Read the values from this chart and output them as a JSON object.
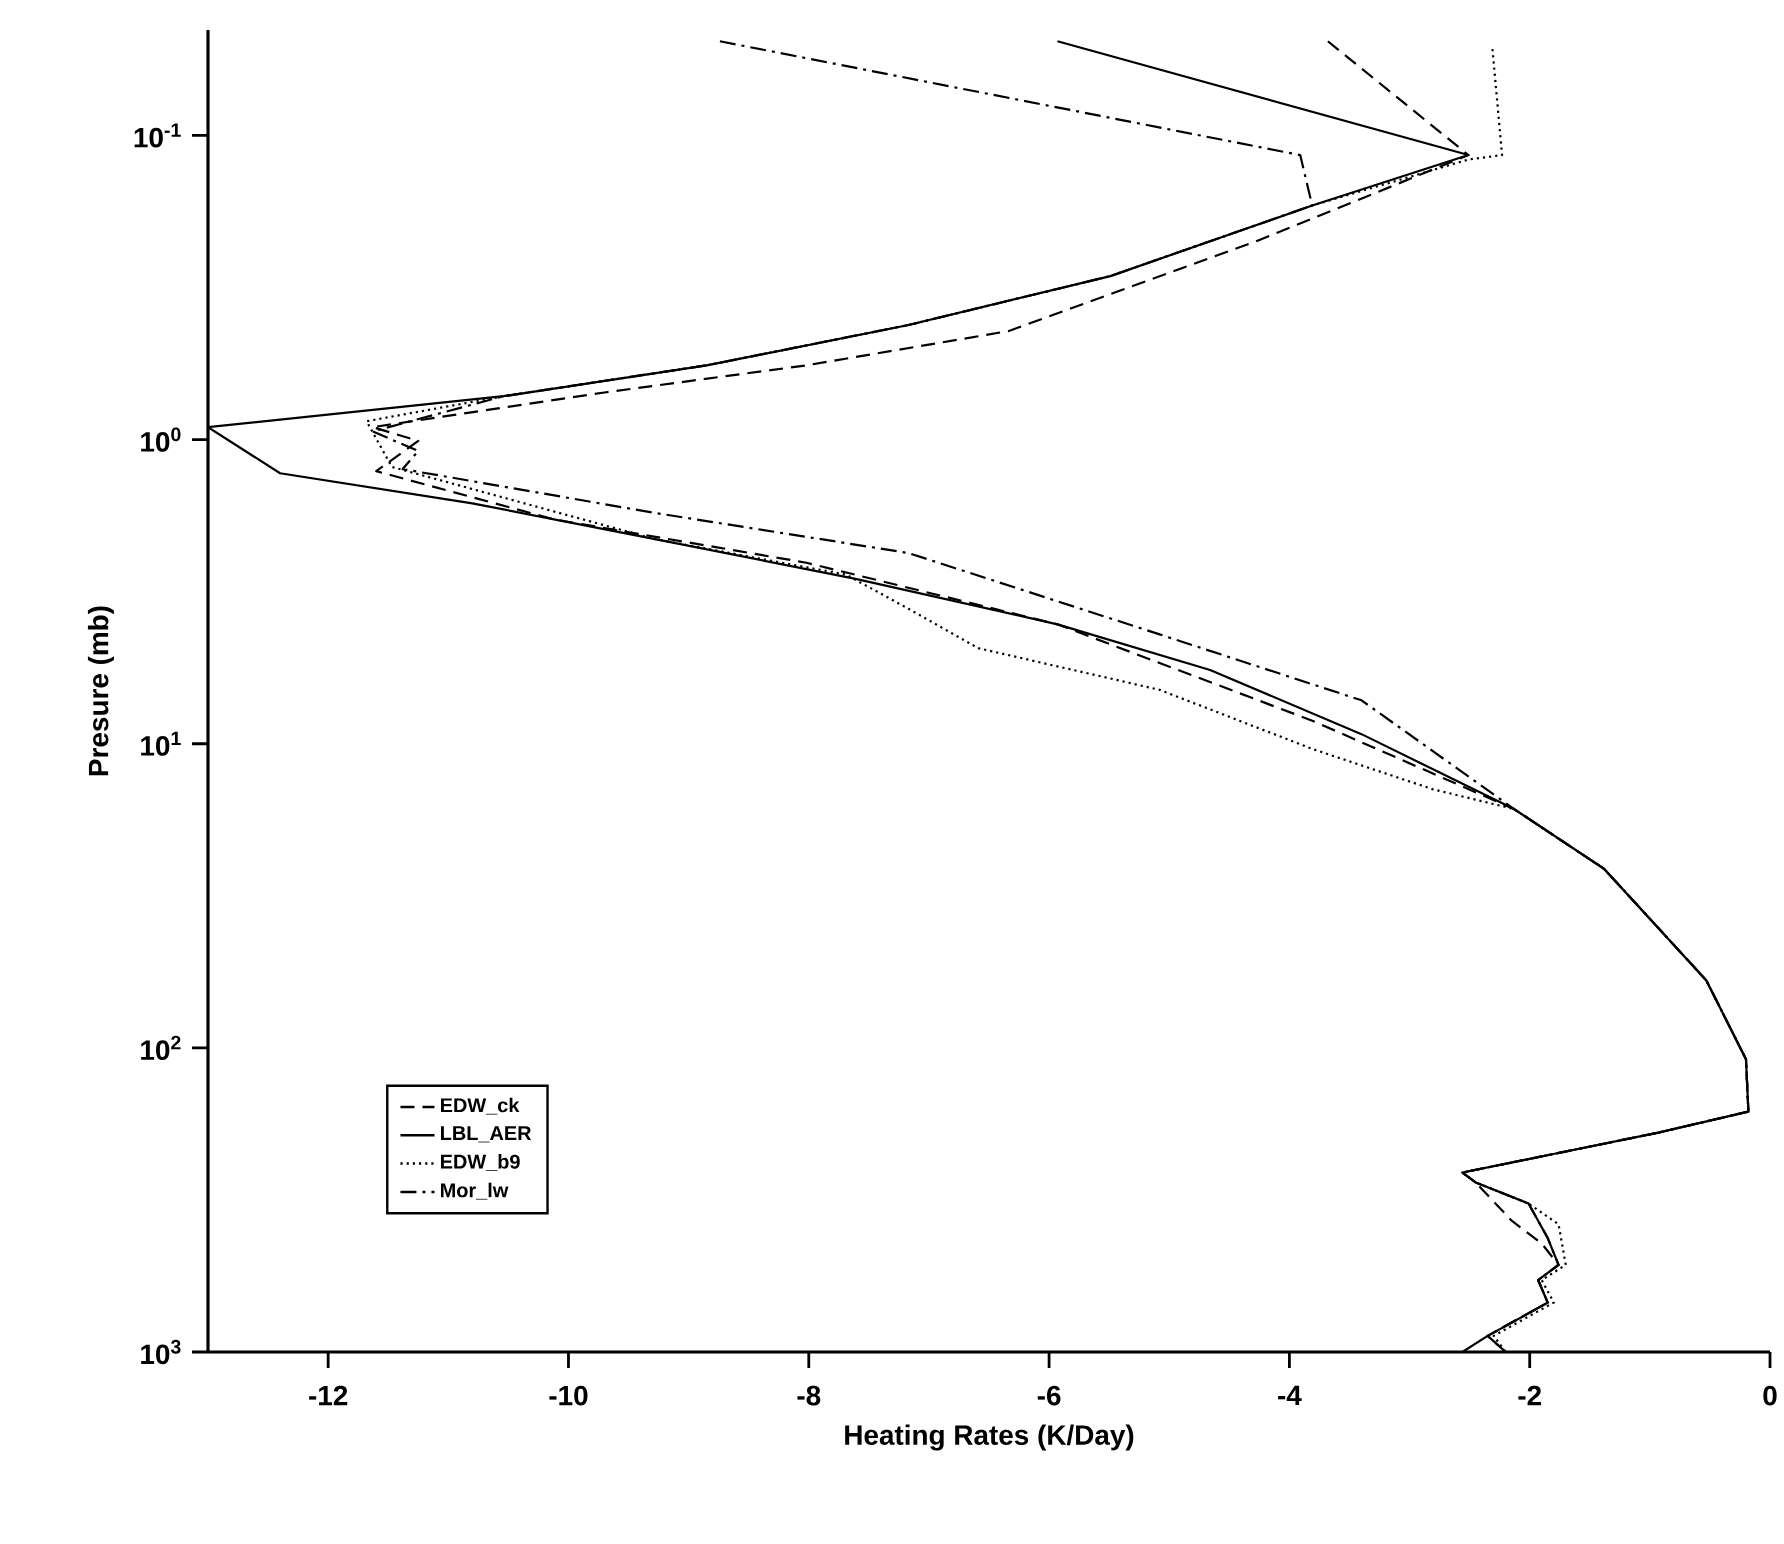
{
  "chart_data": {
    "type": "line",
    "xlabel": "Heating Rates (K/Day)",
    "ylabel": "Presure (mb)",
    "xlim": [
      -13,
      0
    ],
    "xticks": [
      -12,
      -10,
      -8,
      -6,
      -4,
      -2,
      0
    ],
    "ylim": [
      1000,
      0.045
    ],
    "yticks": [
      {
        "value": 0.1,
        "label": "10$^{-1}$"
      },
      {
        "value": 1,
        "label": "10$^{0}$"
      },
      {
        "value": 10,
        "label": "10$^{1}$"
      },
      {
        "value": 100,
        "label": "10$^{2}$"
      },
      {
        "value": 1000,
        "label": "10$^{3}$"
      }
    ],
    "log": "y",
    "grid": false,
    "legend": "bottom left",
    "marker": "none",
    "series": [
      {
        "name": "EDW_ck",
        "color": "#000000",
        "line_style": "dashed",
        "x": [
          -3.68,
          -2.51,
          -4.24,
          -6.34,
          -8.02,
          -9.7,
          -11.63,
          -11.25,
          -11.6,
          -10.12,
          -8.02,
          -5.93,
          -3.81,
          -2.13,
          -1.38,
          -0.53,
          -0.2,
          -0.18,
          -0.93,
          -2.56,
          -2.45,
          -2.15,
          -1.9,
          -1.76,
          -1.93,
          -1.85,
          -2.35,
          -2.2
        ],
        "values": [
          0.049,
          0.116,
          0.22,
          0.44,
          0.57,
          0.7,
          0.91,
          1.01,
          1.27,
          1.83,
          2.54,
          4.05,
          8.4,
          16.4,
          25.8,
          60,
          109,
          162,
          190,
          257,
          277,
          370,
          440,
          517,
          580,
          688,
          885,
          1000
        ]
      },
      {
        "name": "LBL_AER",
        "color": "#000000",
        "line_style": "solid",
        "x": [
          -5.93,
          -2.51,
          -3.81,
          -5.49,
          -7.17,
          -8.85,
          -10.54,
          -13.0,
          -12.4,
          -10.8,
          -9.29,
          -7.61,
          -5.93,
          -4.66,
          -3.4,
          -2.13,
          -1.38,
          -0.53,
          -0.2,
          -0.18,
          -0.93,
          -2.56,
          -2.45,
          -2.01,
          -1.85,
          -1.76,
          -1.93,
          -1.85,
          -2.35,
          -2.56
        ],
        "values": [
          0.049,
          0.116,
          0.17,
          0.29,
          0.42,
          0.57,
          0.72,
          0.91,
          1.29,
          1.62,
          2.12,
          2.87,
          4.05,
          5.72,
          9.3,
          16.4,
          25.8,
          60,
          109,
          162,
          190,
          257,
          277,
          325,
          422,
          517,
          580,
          688,
          885,
          1000
        ]
      },
      {
        "name": "EDW_b9",
        "color": "#000000",
        "line_style": "dotted",
        "x": [
          -2.31,
          -2.23,
          -2.51,
          -3.81,
          -5.49,
          -7.17,
          -8.85,
          -10.54,
          -11.68,
          -11.47,
          -9.29,
          -7.69,
          -7.17,
          -6.59,
          -5.08,
          -3.81,
          -2.81,
          -2.13,
          -1.38,
          -0.53,
          -0.2,
          -0.18,
          -0.93,
          -2.56,
          -2.45,
          -2.01,
          -1.76,
          -1.7,
          -1.9,
          -1.8,
          -2.3,
          -2.2
        ],
        "values": [
          0.052,
          0.116,
          0.12,
          0.17,
          0.29,
          0.42,
          0.57,
          0.72,
          0.87,
          1.23,
          2.12,
          2.78,
          3.6,
          4.85,
          6.65,
          10.4,
          14.1,
          16.4,
          25.8,
          60,
          109,
          162,
          190,
          257,
          277,
          325,
          380,
          517,
          580,
          688,
          885,
          1000
        ]
      },
      {
        "name": "Mor_lw",
        "color": "#000000",
        "line_style": "dashdot",
        "x": [
          -8.74,
          -3.91,
          -3.81,
          -5.49,
          -7.17,
          -8.85,
          -10.54,
          -11.63,
          -11.25,
          -11.38,
          -9.29,
          -7.17,
          -5.08,
          -3.4,
          -2.13,
          -1.38,
          -0.53,
          -0.2,
          -0.18,
          -0.93,
          -2.56,
          -2.45,
          -2.01,
          -1.85,
          -1.76,
          -1.93,
          -1.85,
          -2.35,
          -2.2
        ],
        "values": [
          0.049,
          0.116,
          0.17,
          0.29,
          0.42,
          0.57,
          0.72,
          0.94,
          1.09,
          1.25,
          1.74,
          2.36,
          4.37,
          7.2,
          16.4,
          25.8,
          60,
          109,
          162,
          190,
          257,
          277,
          325,
          422,
          517,
          580,
          688,
          885,
          1000
        ]
      }
    ]
  }
}
